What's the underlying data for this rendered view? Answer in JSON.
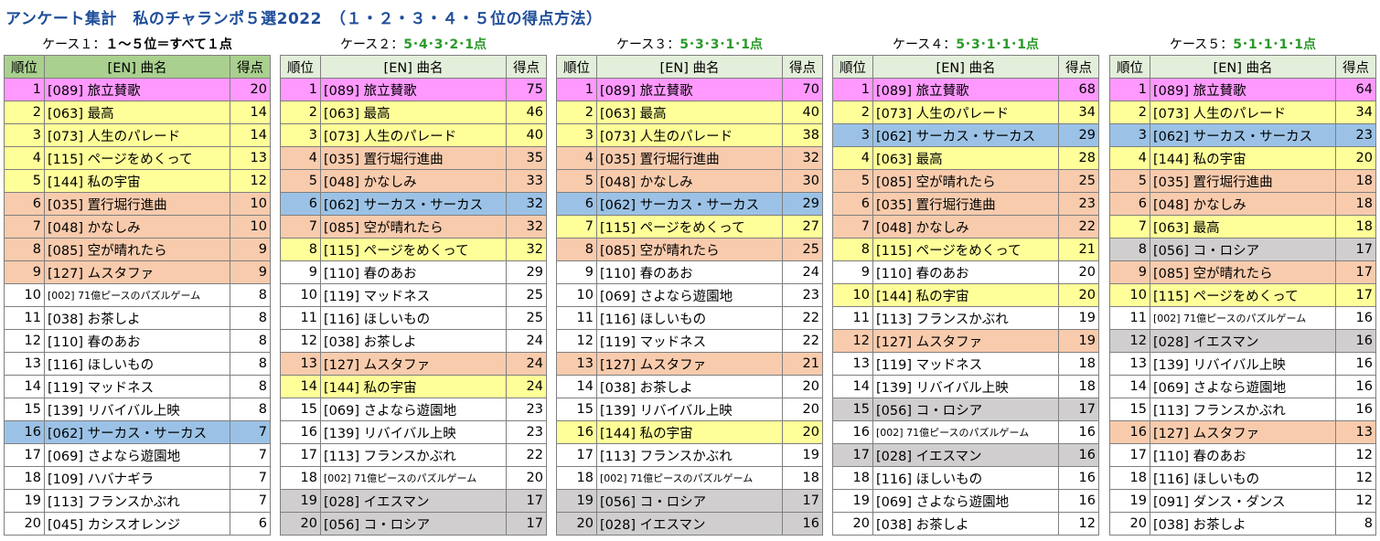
{
  "title": "アンケート集計　私のチャランポ５選2022　（１・２・３・４・５位の得点方法）",
  "headers": {
    "rank": "順位",
    "song": "[EN] 曲名",
    "score": "得点"
  },
  "panels": [
    {
      "caption_prefix": "ケース１：",
      "caption_method": "１～５位＝すべて１点",
      "rows": [
        {
          "rank": "1",
          "song": "[089] 旅立賛歌",
          "score": "20",
          "color": "pink"
        },
        {
          "rank": "2",
          "song": "[063] 最高",
          "score": "14",
          "color": "yellow"
        },
        {
          "rank": "3",
          "song": "[073] 人生のパレード",
          "score": "14",
          "color": "yellow"
        },
        {
          "rank": "4",
          "song": "[115] ページをめくって",
          "score": "13",
          "color": "yellow"
        },
        {
          "rank": "5",
          "song": "[144] 私の宇宙",
          "score": "12",
          "color": "yellow"
        },
        {
          "rank": "6",
          "song": "[035] 置行堀行進曲",
          "score": "10",
          "color": "orange"
        },
        {
          "rank": "7",
          "song": "[048] かなしみ",
          "score": "10",
          "color": "orange"
        },
        {
          "rank": "8",
          "song": "[085] 空が晴れたら",
          "score": "9",
          "color": "orange"
        },
        {
          "rank": "9",
          "song": "[127] ムスタファ",
          "score": "9",
          "color": "orange"
        },
        {
          "rank": "10",
          "song": "[002] 71億ピースのパズルゲーム",
          "score": "8",
          "color": "white",
          "small": true
        },
        {
          "rank": "11",
          "song": "[038] お茶しよ",
          "score": "8",
          "color": "white"
        },
        {
          "rank": "12",
          "song": "[110] 春のあお",
          "score": "8",
          "color": "white"
        },
        {
          "rank": "13",
          "song": "[116] ほしいもの",
          "score": "8",
          "color": "white"
        },
        {
          "rank": "14",
          "song": "[119] マッドネス",
          "score": "8",
          "color": "white"
        },
        {
          "rank": "15",
          "song": "[139] リバイバル上映",
          "score": "8",
          "color": "white"
        },
        {
          "rank": "16",
          "song": "[062] サーカス・サーカス",
          "score": "7",
          "color": "blue"
        },
        {
          "rank": "17",
          "song": "[069] さよなら遊園地",
          "score": "7",
          "color": "white"
        },
        {
          "rank": "18",
          "song": "[109] ハバナギラ",
          "score": "7",
          "color": "white"
        },
        {
          "rank": "19",
          "song": "[113] フランスかぶれ",
          "score": "7",
          "color": "white"
        },
        {
          "rank": "20",
          "song": "[045] カシスオレンジ",
          "score": "6",
          "color": "white"
        }
      ]
    },
    {
      "caption_prefix": "ケース２：",
      "caption_method": "5･4･3･2･1点",
      "rows": [
        {
          "rank": "1",
          "song": "[089] 旅立賛歌",
          "score": "75",
          "color": "pink"
        },
        {
          "rank": "2",
          "song": "[063] 最高",
          "score": "46",
          "color": "yellow"
        },
        {
          "rank": "3",
          "song": "[073] 人生のパレード",
          "score": "40",
          "color": "yellow"
        },
        {
          "rank": "4",
          "song": "[035] 置行堀行進曲",
          "score": "35",
          "color": "orange"
        },
        {
          "rank": "5",
          "song": "[048] かなしみ",
          "score": "33",
          "color": "orange"
        },
        {
          "rank": "6",
          "song": "[062] サーカス・サーカス",
          "score": "32",
          "color": "blue"
        },
        {
          "rank": "7",
          "song": "[085] 空が晴れたら",
          "score": "32",
          "color": "orange"
        },
        {
          "rank": "8",
          "song": "[115] ページをめくって",
          "score": "32",
          "color": "yellow"
        },
        {
          "rank": "9",
          "song": "[110] 春のあお",
          "score": "29",
          "color": "white"
        },
        {
          "rank": "10",
          "song": "[119] マッドネス",
          "score": "25",
          "color": "white"
        },
        {
          "rank": "11",
          "song": "[116] ほしいもの",
          "score": "25",
          "color": "white"
        },
        {
          "rank": "12",
          "song": "[038] お茶しよ",
          "score": "24",
          "color": "white"
        },
        {
          "rank": "13",
          "song": "[127] ムスタファ",
          "score": "24",
          "color": "orange"
        },
        {
          "rank": "14",
          "song": "[144] 私の宇宙",
          "score": "24",
          "color": "yellow"
        },
        {
          "rank": "15",
          "song": "[069] さよなら遊園地",
          "score": "23",
          "color": "white"
        },
        {
          "rank": "16",
          "song": "[139] リバイバル上映",
          "score": "23",
          "color": "white"
        },
        {
          "rank": "17",
          "song": "[113] フランスかぶれ",
          "score": "22",
          "color": "white"
        },
        {
          "rank": "18",
          "song": "[002] 71億ピースのパズルゲーム",
          "score": "20",
          "color": "white",
          "small": true
        },
        {
          "rank": "19",
          "song": "[028] イエスマン",
          "score": "17",
          "color": "gray"
        },
        {
          "rank": "20",
          "song": "[056] コ・ロシア",
          "score": "17",
          "color": "gray"
        }
      ]
    },
    {
      "caption_prefix": "ケース３：",
      "caption_method": "5･3･3･1･1点",
      "rows": [
        {
          "rank": "1",
          "song": "[089] 旅立賛歌",
          "score": "70",
          "color": "pink"
        },
        {
          "rank": "2",
          "song": "[063] 最高",
          "score": "40",
          "color": "yellow"
        },
        {
          "rank": "3",
          "song": "[073] 人生のパレード",
          "score": "38",
          "color": "yellow"
        },
        {
          "rank": "4",
          "song": "[035] 置行堀行進曲",
          "score": "32",
          "color": "orange"
        },
        {
          "rank": "5",
          "song": "[048] かなしみ",
          "score": "30",
          "color": "orange"
        },
        {
          "rank": "6",
          "song": "[062] サーカス・サーカス",
          "score": "29",
          "color": "blue"
        },
        {
          "rank": "7",
          "song": "[115] ページをめくって",
          "score": "27",
          "color": "yellow"
        },
        {
          "rank": "8",
          "song": "[085] 空が晴れたら",
          "score": "25",
          "color": "orange"
        },
        {
          "rank": "9",
          "song": "[110] 春のあお",
          "score": "24",
          "color": "white"
        },
        {
          "rank": "10",
          "song": "[069] さよなら遊園地",
          "score": "23",
          "color": "white"
        },
        {
          "rank": "11",
          "song": "[116] ほしいもの",
          "score": "22",
          "color": "white"
        },
        {
          "rank": "12",
          "song": "[119] マッドネス",
          "score": "22",
          "color": "white"
        },
        {
          "rank": "13",
          "song": "[127] ムスタファ",
          "score": "21",
          "color": "orange"
        },
        {
          "rank": "14",
          "song": "[038] お茶しよ",
          "score": "20",
          "color": "white"
        },
        {
          "rank": "15",
          "song": "[139] リバイバル上映",
          "score": "20",
          "color": "white"
        },
        {
          "rank": "16",
          "song": "[144] 私の宇宙",
          "score": "20",
          "color": "yellow"
        },
        {
          "rank": "17",
          "song": "[113] フランスかぶれ",
          "score": "19",
          "color": "white"
        },
        {
          "rank": "18",
          "song": "[002] 71億ピースのパズルゲーム",
          "score": "18",
          "color": "white",
          "small": true
        },
        {
          "rank": "19",
          "song": "[056] コ・ロシア",
          "score": "17",
          "color": "gray"
        },
        {
          "rank": "20",
          "song": "[028] イエスマン",
          "score": "16",
          "color": "gray"
        }
      ]
    },
    {
      "caption_prefix": "ケース４：",
      "caption_method": "5･3･1･1･1点",
      "rows": [
        {
          "rank": "1",
          "song": "[089] 旅立賛歌",
          "score": "68",
          "color": "pink"
        },
        {
          "rank": "2",
          "song": "[073] 人生のパレード",
          "score": "34",
          "color": "yellow"
        },
        {
          "rank": "3",
          "song": "[062] サーカス・サーカス",
          "score": "29",
          "color": "blue"
        },
        {
          "rank": "4",
          "song": "[063] 最高",
          "score": "28",
          "color": "yellow"
        },
        {
          "rank": "5",
          "song": "[085] 空が晴れたら",
          "score": "25",
          "color": "orange"
        },
        {
          "rank": "6",
          "song": "[035] 置行堀行進曲",
          "score": "23",
          "color": "orange"
        },
        {
          "rank": "7",
          "song": "[048] かなしみ",
          "score": "22",
          "color": "orange"
        },
        {
          "rank": "8",
          "song": "[115] ページをめくって",
          "score": "21",
          "color": "yellow"
        },
        {
          "rank": "9",
          "song": "[110] 春のあお",
          "score": "20",
          "color": "white"
        },
        {
          "rank": "10",
          "song": "[144] 私の宇宙",
          "score": "20",
          "color": "yellow"
        },
        {
          "rank": "11",
          "song": "[113] フランスかぶれ",
          "score": "19",
          "color": "white"
        },
        {
          "rank": "12",
          "song": "[127] ムスタファ",
          "score": "19",
          "color": "orange"
        },
        {
          "rank": "13",
          "song": "[119] マッドネス",
          "score": "18",
          "color": "white"
        },
        {
          "rank": "14",
          "song": "[139] リバイバル上映",
          "score": "18",
          "color": "white"
        },
        {
          "rank": "15",
          "song": "[056] コ・ロシア",
          "score": "17",
          "color": "gray"
        },
        {
          "rank": "16",
          "song": "[002] 71億ピースのパズルゲーム",
          "score": "16",
          "color": "white",
          "small": true
        },
        {
          "rank": "17",
          "song": "[028] イエスマン",
          "score": "16",
          "color": "gray"
        },
        {
          "rank": "18",
          "song": "[116] ほしいもの",
          "score": "16",
          "color": "white"
        },
        {
          "rank": "19",
          "song": "[069] さよなら遊園地",
          "score": "16",
          "color": "white"
        },
        {
          "rank": "20",
          "song": "[038] お茶しよ",
          "score": "12",
          "color": "white"
        }
      ]
    },
    {
      "caption_prefix": "ケース５：",
      "caption_method": "5･1･1･1･1点",
      "rows": [
        {
          "rank": "1",
          "song": "[089] 旅立賛歌",
          "score": "64",
          "color": "pink"
        },
        {
          "rank": "2",
          "song": "[073] 人生のパレード",
          "score": "34",
          "color": "yellow"
        },
        {
          "rank": "3",
          "song": "[062] サーカス・サーカス",
          "score": "23",
          "color": "blue"
        },
        {
          "rank": "4",
          "song": "[144] 私の宇宙",
          "score": "20",
          "color": "yellow"
        },
        {
          "rank": "5",
          "song": "[035] 置行堀行進曲",
          "score": "18",
          "color": "orange"
        },
        {
          "rank": "6",
          "song": "[048] かなしみ",
          "score": "18",
          "color": "orange"
        },
        {
          "rank": "7",
          "song": "[063] 最高",
          "score": "18",
          "color": "yellow"
        },
        {
          "rank": "8",
          "song": "[056] コ・ロシア",
          "score": "17",
          "color": "gray"
        },
        {
          "rank": "9",
          "song": "[085] 空が晴れたら",
          "score": "17",
          "color": "orange"
        },
        {
          "rank": "10",
          "song": "[115] ページをめくって",
          "score": "17",
          "color": "yellow"
        },
        {
          "rank": "11",
          "song": "[002] 71億ピースのパズルゲーム",
          "score": "16",
          "color": "white",
          "small": true
        },
        {
          "rank": "12",
          "song": "[028] イエスマン",
          "score": "16",
          "color": "gray"
        },
        {
          "rank": "13",
          "song": "[139] リバイバル上映",
          "score": "16",
          "color": "white"
        },
        {
          "rank": "14",
          "song": "[069] さよなら遊園地",
          "score": "16",
          "color": "white"
        },
        {
          "rank": "15",
          "song": "[113] フランスかぶれ",
          "score": "16",
          "color": "white"
        },
        {
          "rank": "16",
          "song": "[127] ムスタファ",
          "score": "13",
          "color": "orange"
        },
        {
          "rank": "17",
          "song": "[110] 春のあお",
          "score": "12",
          "color": "white"
        },
        {
          "rank": "18",
          "song": "[116] ほしいもの",
          "score": "12",
          "color": "white"
        },
        {
          "rank": "19",
          "song": "[091] ダンス・ダンス",
          "score": "12",
          "color": "white"
        },
        {
          "rank": "20",
          "song": "[038] お茶しよ",
          "score": "8",
          "color": "white"
        }
      ]
    }
  ]
}
